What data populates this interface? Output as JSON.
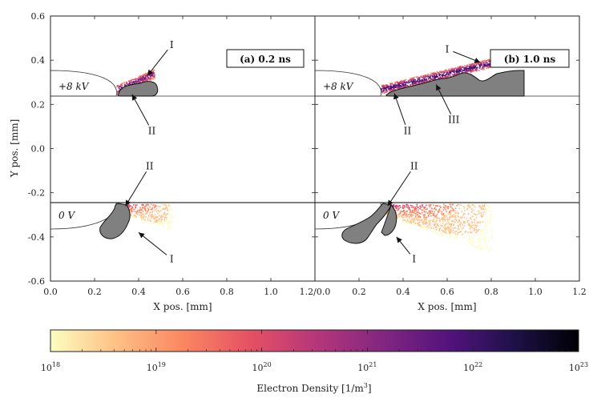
{
  "chart_data": {
    "type": "scatter",
    "description_axes": {
      "xlabel": "X pos. [mm]",
      "ylabel": "Y pos. [mm]",
      "xlim": [
        0.0,
        1.2
      ],
      "ylim": [
        -0.6,
        0.6
      ]
    },
    "x_ticks": [
      "0.0",
      "0.2",
      "0.4",
      "0.6",
      "0.8",
      "1.0"
    ],
    "x_ticks_right": [
      "1.2/0.0",
      "0.2",
      "0.4",
      "0.6",
      "0.8",
      "1.0",
      "1.2"
    ],
    "y_ticks": [
      "0.6",
      "0.4",
      "0.2",
      "0.0",
      "-0.2",
      "-0.4",
      "-0.6"
    ],
    "y_tick_values": [
      0.6,
      0.4,
      0.2,
      0.0,
      -0.2,
      -0.4,
      -0.6
    ],
    "panels": [
      {
        "id": "a",
        "label": "(a) 0.2 ns",
        "electrode_gap": 0.24,
        "annotations": [
          {
            "text": "I",
            "x": 0.55,
            "y": 0.47,
            "target_x": 0.44,
            "target_y": 0.33
          },
          {
            "text": "II",
            "x": 0.46,
            "y": 0.08,
            "target_x": 0.37,
            "target_y": 0.245
          },
          {
            "text": "II",
            "x": 0.45,
            "y": -0.08,
            "target_x": 0.34,
            "target_y": -0.26
          },
          {
            "text": "I",
            "x": 0.55,
            "y": -0.5,
            "target_x": 0.4,
            "target_y": -0.38
          }
        ],
        "voltage_top": "+8 kV",
        "voltage_bottom": "0 V",
        "streamers": [
          {
            "region": "top",
            "x_range": [
              0.3,
              0.47
            ],
            "y_range": [
              0.27,
              0.34
            ]
          },
          {
            "region": "bottom",
            "x_range": [
              0.33,
              0.55
            ],
            "y_range": [
              -0.4,
              -0.25
            ]
          }
        ]
      },
      {
        "id": "b",
        "label": "(b) 1.0 ns",
        "electrode_gap": 0.24,
        "annotations": [
          {
            "text": "I",
            "x": 0.6,
            "y": 0.45,
            "target_x": 0.75,
            "target_y": 0.39
          },
          {
            "text": "II",
            "x": 0.42,
            "y": 0.08,
            "target_x": 0.36,
            "target_y": 0.25
          },
          {
            "text": "III",
            "x": 0.63,
            "y": 0.13,
            "target_x": 0.55,
            "target_y": 0.29
          },
          {
            "text": "II",
            "x": 0.45,
            "y": -0.08,
            "target_x": 0.33,
            "target_y": -0.26
          },
          {
            "text": "I",
            "x": 0.45,
            "y": -0.5,
            "target_x": 0.37,
            "target_y": -0.4
          }
        ],
        "voltage_top": "+8 kV",
        "voltage_bottom": "0 V",
        "streamers": [
          {
            "region": "top",
            "x_range": [
              0.3,
              0.8
            ],
            "y_range": [
              0.27,
              0.39
            ]
          },
          {
            "region": "bottom",
            "x_range": [
              0.32,
              0.8
            ],
            "y_range": [
              -0.42,
              -0.25
            ]
          }
        ]
      }
    ],
    "colorbar": {
      "label": "Electron Density [1/m",
      "label_sup": "3",
      "label_end": "]",
      "scale": "log",
      "range": [
        18,
        23
      ],
      "tick_base": "10",
      "tick_exponents": [
        "18",
        "19",
        "20",
        "21",
        "22",
        "23"
      ],
      "colors": [
        "#fcfdbf",
        "#fec287",
        "#fb8761",
        "#e55064",
        "#b73779",
        "#822681",
        "#51127c",
        "#1d1147",
        "#000004"
      ]
    }
  }
}
